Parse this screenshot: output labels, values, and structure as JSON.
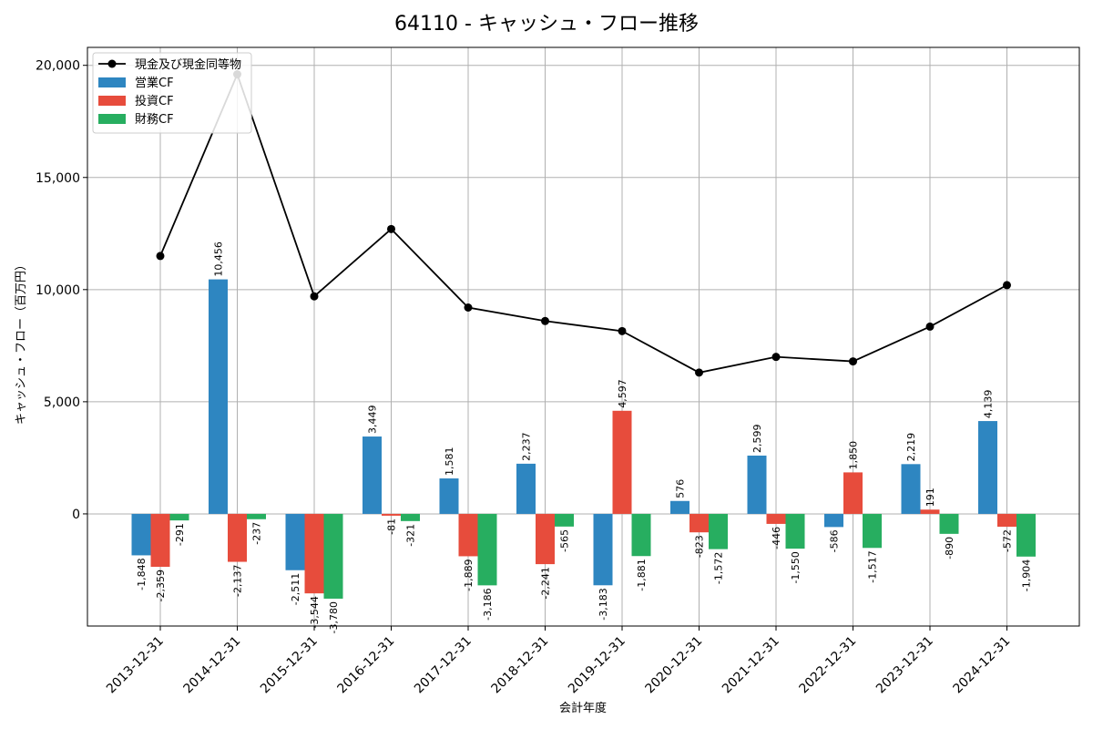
{
  "chart_data": {
    "type": "bar",
    "title": "64110 - キャッシュ・フロー推移",
    "xlabel": "会計年度",
    "ylabel": "キャッシュ・フロー（百万円）",
    "categories": [
      "2013-12-31",
      "2014-12-31",
      "2015-12-31",
      "2016-12-31",
      "2017-12-31",
      "2018-12-31",
      "2019-12-31",
      "2020-12-31",
      "2021-12-31",
      "2022-12-31",
      "2023-12-31",
      "2024-12-31"
    ],
    "ylim": [
      -5000,
      20800
    ],
    "yticks": [
      0,
      5000,
      10000,
      15000,
      20000
    ],
    "ytick_labels": [
      "0",
      "5,000",
      "10,000",
      "15,000",
      "20,000"
    ],
    "grid": true,
    "legend_position": "top-left",
    "series": [
      {
        "name": "営業CF",
        "type": "bar",
        "color": "#2e86c1",
        "values": [
          -1848,
          10456,
          -2511,
          3449,
          1581,
          2237,
          -3183,
          576,
          2599,
          -586,
          2219,
          4139
        ],
        "labels": [
          "-1,848",
          "10,456",
          "-2,511",
          "3,449",
          "1,581",
          "2,237",
          "-3,183",
          "576",
          "2,599",
          "-586",
          "2,219",
          "4,139"
        ]
      },
      {
        "name": "投資CF",
        "type": "bar",
        "color": "#e74c3c",
        "values": [
          -2359,
          -2137,
          -3544,
          -81,
          -1889,
          -2241,
          4597,
          -823,
          -446,
          1850,
          191,
          -572
        ],
        "labels": [
          "-2,359",
          "-2,137",
          "-3,544",
          "-81",
          "-1,889",
          "-2,241",
          "4,597",
          "-823",
          "-446",
          "1,850",
          "191",
          "-572"
        ]
      },
      {
        "name": "財務CF",
        "type": "bar",
        "color": "#27ae60",
        "values": [
          -291,
          -237,
          -3780,
          -321,
          -3186,
          -565,
          -1881,
          -1572,
          -1550,
          -1517,
          -890,
          -1904
        ],
        "labels": [
          "-291",
          "-237",
          "-3,780",
          "-321",
          "-3,186",
          "-565",
          "-1,881",
          "-1,572",
          "-1,550",
          "-1,517",
          "-890",
          "-1,904"
        ]
      },
      {
        "name": "現金及び現金同等物",
        "type": "line",
        "color": "#000000",
        "values": [
          11500,
          19600,
          9700,
          12700,
          9200,
          8600,
          8150,
          6300,
          7000,
          6800,
          8350,
          10200
        ]
      }
    ]
  }
}
